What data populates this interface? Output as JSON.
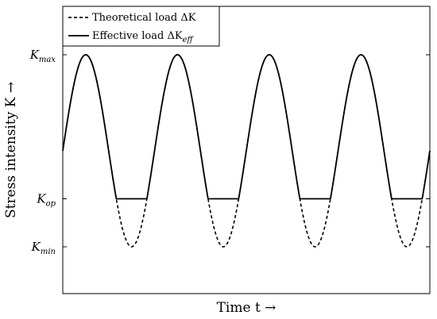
{
  "chart_data": {
    "type": "line",
    "title": "",
    "xlabel": "Time t →",
    "ylabel": "Stress intensity K →",
    "y_ticks": [
      {
        "name": "K_max",
        "base": "K",
        "sub": "max",
        "value": 1.0
      },
      {
        "name": "K_op",
        "base": "K",
        "sub": "op",
        "value": -0.5
      },
      {
        "name": "K_min",
        "base": "K",
        "sub": "min",
        "value": -1.0
      }
    ],
    "x_ticks_shown": false,
    "legend": {
      "placement": "top-left",
      "entries": [
        {
          "label": "Theoretical load ΔK",
          "style": "dashed"
        },
        {
          "label": "Effective load ΔK_eff",
          "style": "solid"
        }
      ]
    },
    "series": [
      {
        "name": "Theoretical load ΔK",
        "style": "dashed",
        "function": "sin",
        "min": -1.0,
        "max": 1.0,
        "cycles": 4,
        "phase_start": 0.0
      },
      {
        "name": "Effective load ΔK_eff",
        "style": "solid",
        "function": "max(sin, K_op)",
        "clip_level": -0.5,
        "cycles": 4,
        "phase_start": 0.0
      }
    ],
    "ylim": [
      -1.5,
      1.5
    ],
    "grid": false,
    "colors": {
      "line": "#000000",
      "axes": "#000000",
      "background": "#ffffff"
    }
  }
}
